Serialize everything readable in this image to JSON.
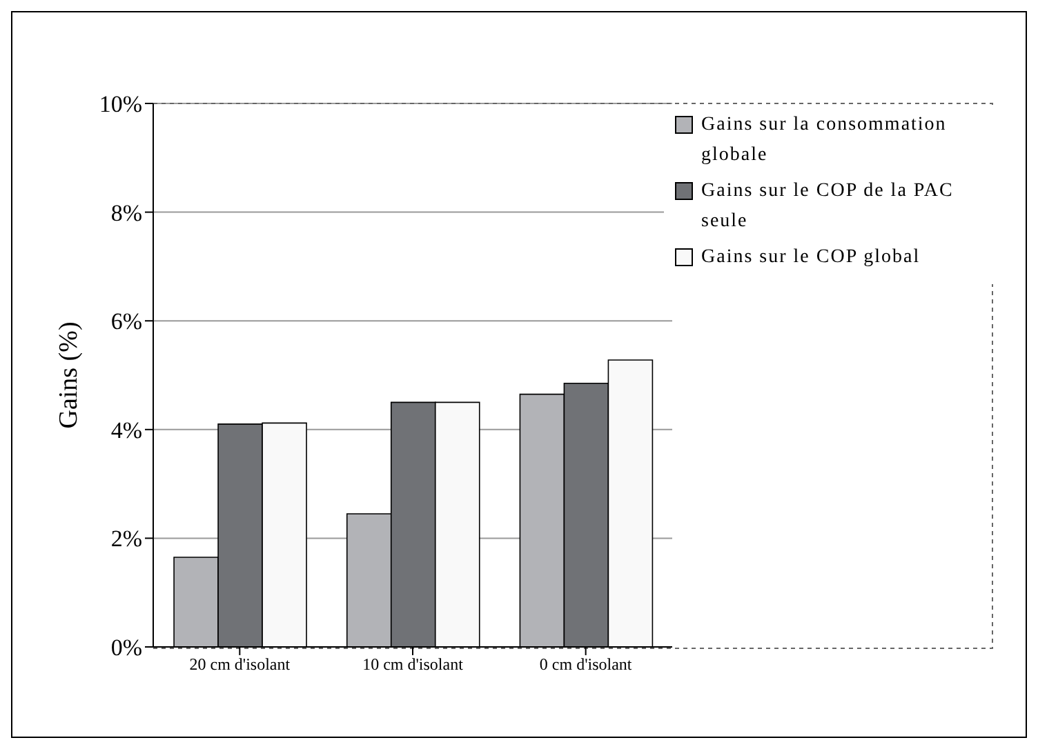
{
  "chart_data": {
    "type": "bar",
    "ylabel": "Gains (%)",
    "categories": [
      "20 cm d'isolant",
      "10 cm d'isolant",
      "0 cm d'isolant"
    ],
    "series": [
      {
        "name": "Gains sur la consommation globale",
        "color": "#b2b3b7",
        "values": [
          1.65,
          2.45,
          4.65
        ]
      },
      {
        "name": "Gains sur le COP de la PAC seule",
        "color": "#707276",
        "values": [
          4.1,
          4.5,
          4.85
        ]
      },
      {
        "name": "Gains sur le COP global",
        "color": "#f9f9f9",
        "values": [
          4.12,
          4.5,
          5.28
        ]
      }
    ],
    "ylim": [
      0,
      10
    ],
    "yticks": [
      {
        "value": 0,
        "label": "0%"
      },
      {
        "value": 2,
        "label": "2%"
      },
      {
        "value": 4,
        "label": "4%"
      },
      {
        "value": 6,
        "label": "6%"
      },
      {
        "value": 8,
        "label": "8%"
      },
      {
        "value": 10,
        "label": "10%"
      }
    ],
    "grid": "y",
    "legend": "top right"
  }
}
